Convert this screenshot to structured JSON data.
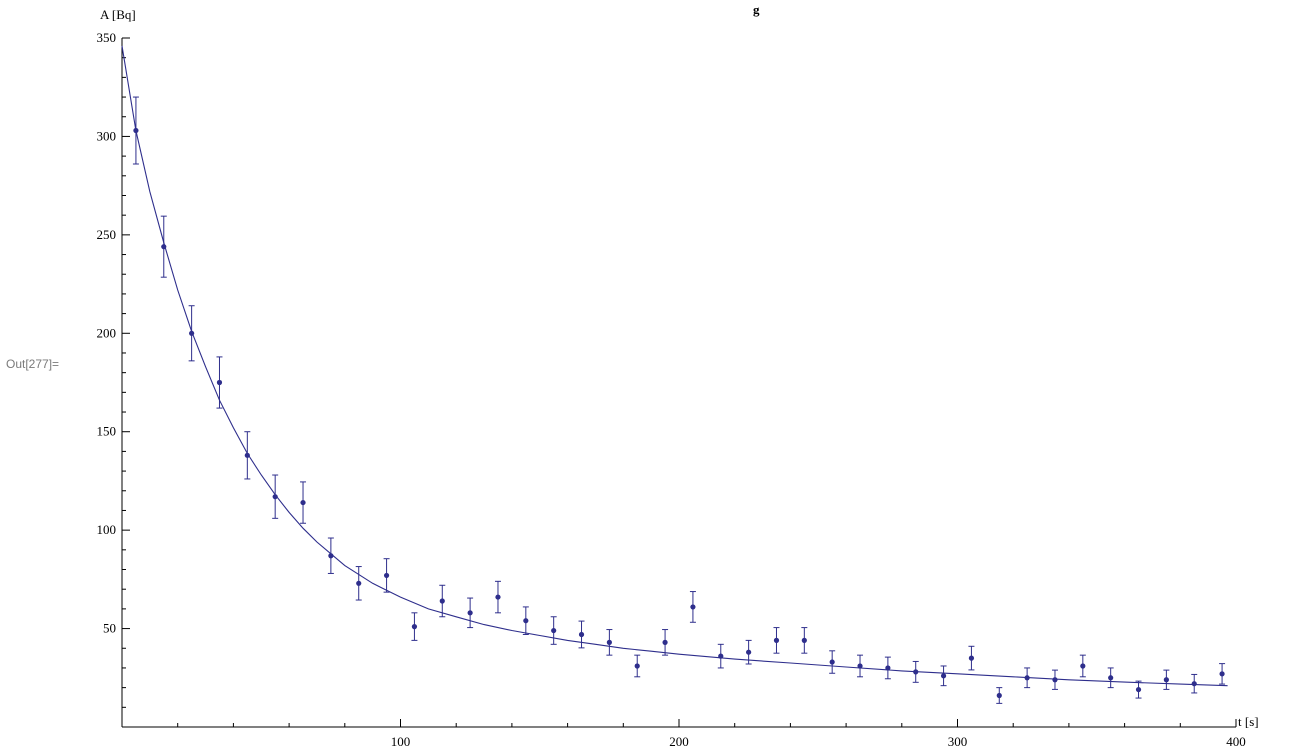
{
  "cell": {
    "out_label": "Out[277]="
  },
  "chart_data": {
    "type": "scatter",
    "title_fragment": "g",
    "xlabel": "t [s]",
    "ylabel": "A [Bq]",
    "xlim": [
      0,
      400
    ],
    "ylim": [
      0,
      350
    ],
    "x_ticks": [
      100,
      200,
      300,
      400
    ],
    "y_ticks": [
      50,
      100,
      150,
      200,
      250,
      300,
      350
    ],
    "grid": false,
    "colors": {
      "points": "#2e2e8c",
      "fit": "#2e2e8c",
      "axis": "#000000"
    },
    "series": [
      {
        "points": [
          [
            5,
            303,
            17
          ],
          [
            15,
            244,
            15.5
          ],
          [
            25,
            200,
            14
          ],
          [
            35,
            175,
            13
          ],
          [
            45,
            138,
            12
          ],
          [
            55,
            117,
            11
          ],
          [
            65,
            114,
            10.5
          ],
          [
            75,
            87,
            9
          ],
          [
            85,
            73,
            8.5
          ],
          [
            95,
            77,
            8.5
          ],
          [
            105,
            51,
            7
          ],
          [
            115,
            64,
            8
          ],
          [
            125,
            58,
            7.5
          ],
          [
            135,
            66,
            8
          ],
          [
            145,
            54,
            7
          ],
          [
            155,
            49,
            7
          ],
          [
            165,
            47,
            6.8
          ],
          [
            175,
            43,
            6.5
          ],
          [
            185,
            31,
            5.5
          ],
          [
            195,
            43,
            6.5
          ],
          [
            205,
            61,
            7.8
          ],
          [
            215,
            36,
            6
          ],
          [
            225,
            38,
            6
          ],
          [
            235,
            44,
            6.5
          ],
          [
            245,
            44,
            6.5
          ],
          [
            255,
            33,
            5.7
          ],
          [
            265,
            31,
            5.5
          ],
          [
            275,
            30,
            5.5
          ],
          [
            285,
            28,
            5.3
          ],
          [
            295,
            26,
            5
          ],
          [
            305,
            35,
            6
          ],
          [
            315,
            16,
            4
          ],
          [
            325,
            25,
            5
          ],
          [
            335,
            24,
            4.9
          ],
          [
            345,
            31,
            5.5
          ],
          [
            355,
            25,
            5
          ],
          [
            365,
            19,
            4.3
          ],
          [
            375,
            24,
            4.9
          ],
          [
            385,
            22,
            4.7
          ],
          [
            395,
            27,
            5.2
          ]
        ]
      },
      {
        "fit": [
          [
            0,
            346
          ],
          [
            5,
            303
          ],
          [
            10,
            272
          ],
          [
            15,
            246
          ],
          [
            20,
            222
          ],
          [
            25,
            201
          ],
          [
            30,
            183
          ],
          [
            35,
            166
          ],
          [
            40,
            152
          ],
          [
            45,
            139
          ],
          [
            50,
            128
          ],
          [
            55,
            118
          ],
          [
            60,
            109
          ],
          [
            65,
            101
          ],
          [
            70,
            94
          ],
          [
            75,
            88
          ],
          [
            80,
            82
          ],
          [
            90,
            73
          ],
          [
            100,
            66
          ],
          [
            110,
            60
          ],
          [
            120,
            56
          ],
          [
            130,
            52
          ],
          [
            140,
            49
          ],
          [
            150,
            46.5
          ],
          [
            160,
            44
          ],
          [
            170,
            42
          ],
          [
            180,
            40
          ],
          [
            190,
            38.5
          ],
          [
            200,
            37
          ],
          [
            220,
            34.5
          ],
          [
            240,
            32.5
          ],
          [
            260,
            30.5
          ],
          [
            280,
            28.5
          ],
          [
            300,
            27
          ],
          [
            320,
            25.5
          ],
          [
            340,
            24
          ],
          [
            360,
            22.8
          ],
          [
            380,
            21.8
          ],
          [
            397,
            21
          ]
        ]
      }
    ]
  }
}
